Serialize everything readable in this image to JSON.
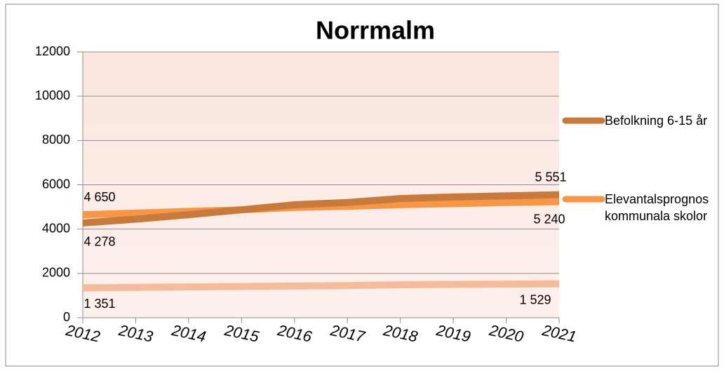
{
  "chart_data": {
    "type": "line",
    "title": "Norrmalm",
    "categories": [
      "2012",
      "2013",
      "2014",
      "2015",
      "2016",
      "2017",
      "2018",
      "2019",
      "2020",
      "2021"
    ],
    "series": [
      {
        "name": "Befolkning 6-15 år",
        "color": "#c87a3c",
        "values": [
          4278,
          4450,
          4650,
          4870,
          5100,
          5200,
          5380,
          5450,
          5500,
          5551
        ],
        "value_labels": [
          "4 278",
          null,
          null,
          null,
          null,
          null,
          null,
          null,
          null,
          "5 551"
        ]
      },
      {
        "name": "Elevantalsprognos kommunala skolor",
        "color": "#f79646",
        "values": [
          4650,
          4720,
          4800,
          4870,
          4980,
          5030,
          5100,
          5150,
          5200,
          5240
        ],
        "value_labels": [
          "4 650",
          null,
          null,
          null,
          null,
          null,
          null,
          null,
          null,
          "5 240"
        ]
      },
      {
        "color": "#f6bb9c",
        "values": [
          1351,
          1370,
          1390,
          1410,
          1430,
          1450,
          1490,
          1505,
          1515,
          1529
        ],
        "value_labels": [
          "1 351",
          null,
          null,
          null,
          null,
          null,
          null,
          null,
          null,
          "1 529"
        ]
      }
    ],
    "ylim": [
      0,
      12000
    ],
    "yticks": [
      0,
      2000,
      4000,
      6000,
      8000,
      10000,
      12000
    ],
    "grid": true,
    "legend": "right"
  }
}
